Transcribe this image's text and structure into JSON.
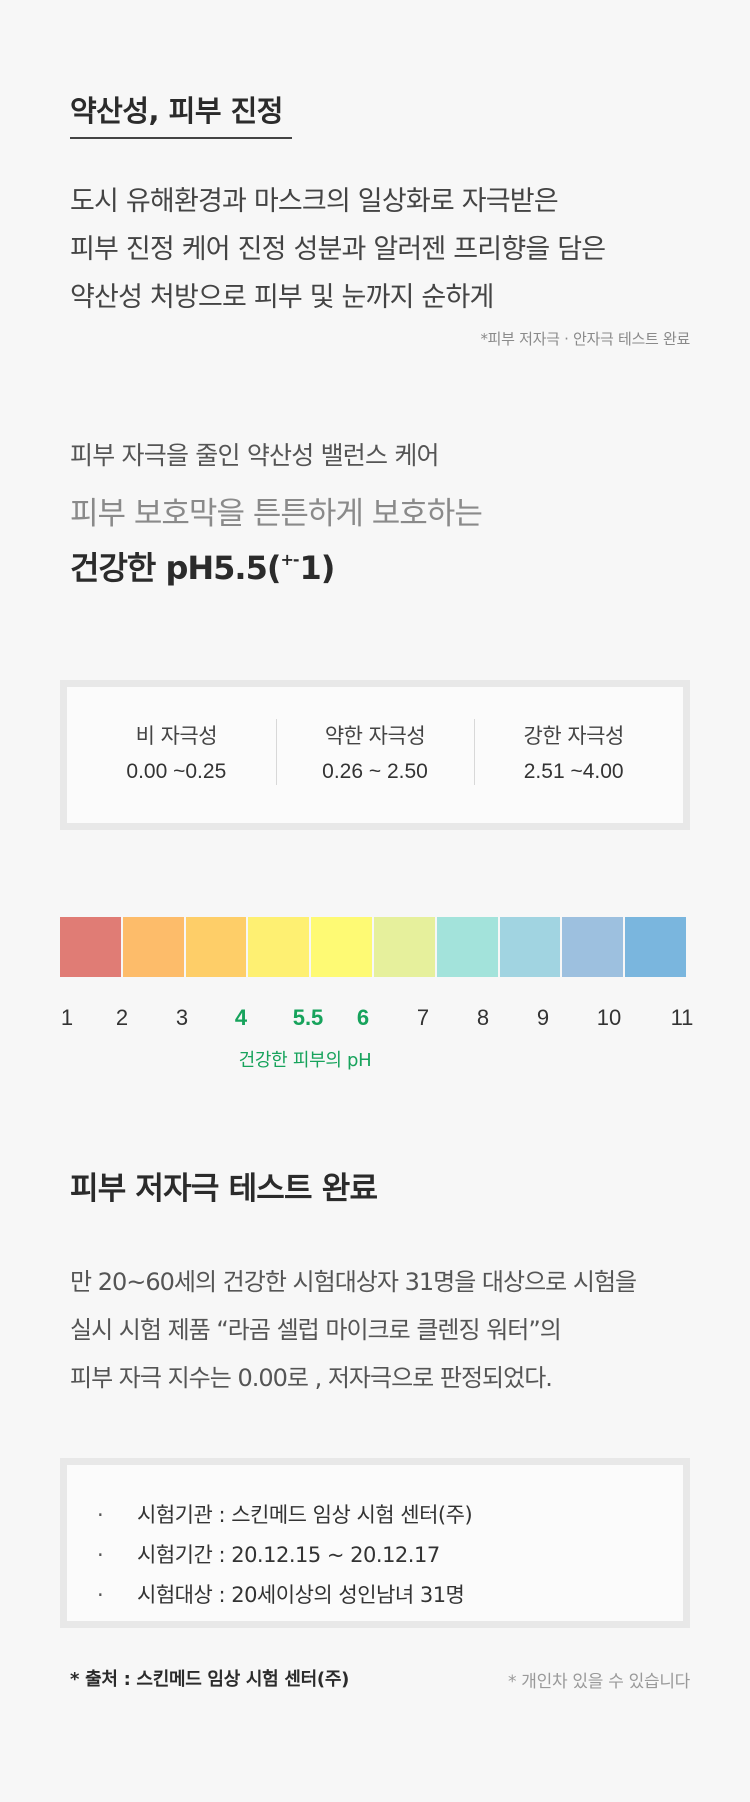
{
  "intro": {
    "title": "약산성, 피부 진정",
    "lines": [
      "도시 유해환경과 마스크의 일상화로 자극받은",
      "피부 진정 케어 진정 성분과 알러젠 프리향을 담은",
      "약산성 처방으로 피부 및 눈까지 순하게"
    ],
    "note": "*피부 저자극 · 안자극 테스트 완료"
  },
  "ph": {
    "subtitle": "피부 자극을 줄인 약산성 밸런스 케어",
    "line": "피부 보호막을 튼튼하게 보호하는",
    "strong_prefix": "건강한 pH5.5(",
    "strong_sup": "+-",
    "strong_suffix": "1)"
  },
  "irritation": [
    {
      "label": "비 자극성",
      "range": "0.00 ~0.25"
    },
    {
      "label": "약한 자극성",
      "range": "0.26 ~ 2.50"
    },
    {
      "label": "강한 자극성",
      "range": "2.51 ~4.00"
    }
  ],
  "scale": {
    "colors": [
      "#e07c75",
      "#fdbc6a",
      "#fece68",
      "#fef072",
      "#fefa74",
      "#e6f09c",
      "#a3e3db",
      "#a1d4e1",
      "#9dc0df",
      "#7ab6de"
    ],
    "labels": [
      {
        "text": "1",
        "highlight": false
      },
      {
        "text": "2",
        "highlight": false
      },
      {
        "text": "3",
        "highlight": false
      },
      {
        "text": "4",
        "highlight": true
      },
      {
        "text": "5.5",
        "highlight": true
      },
      {
        "text": "6",
        "highlight": true
      },
      {
        "text": "7",
        "highlight": false
      },
      {
        "text": "8",
        "highlight": false
      },
      {
        "text": "9",
        "highlight": false
      },
      {
        "text": "10",
        "highlight": false
      },
      {
        "text": "11",
        "highlight": false
      }
    ],
    "healthy_note": "건강한 피부의 pH",
    "highlight_color": "#17a35c"
  },
  "test": {
    "title": "피부 저자극 테스트 완료",
    "lines": [
      "만 20~60세의 건강한 시험대상자 31명을 대상으로 시험을",
      "실시 시험 제품 “라곰 셀럽 마이크로 클렌징 워터”의",
      "피부 자극 지수는 0.00로 , 저자극으로 판정되었다."
    ],
    "bullet": "·",
    "info": [
      "시험기관 : 스킨메드 임상 시험 센터(주)",
      "시험기간 : 20.12.15 ~ 20.12.17",
      "시험대상 : 20세이상의 성인남녀 31명"
    ],
    "source": "* 출처 : 스킨메드 임상 시험 센터(주)",
    "disclaimer": "* 개인차 있을 수 있습니다"
  }
}
